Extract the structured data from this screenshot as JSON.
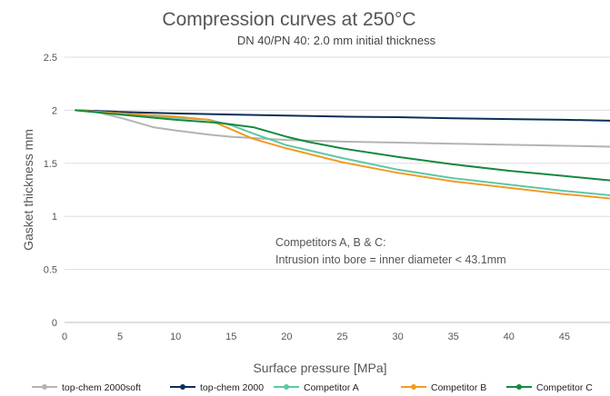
{
  "chart_data": {
    "type": "line",
    "title": "Compression curves at 250°C",
    "subtitle": "DN 40/PN 40: 2.0 mm initial thickness",
    "xlabel": "Surface pressure [MPa]",
    "ylabel": "Gasket thickness mm",
    "xlim": [
      0,
      50
    ],
    "ylim": [
      0,
      2.5
    ],
    "xticks": [
      0,
      5,
      10,
      15,
      20,
      25,
      30,
      35,
      40,
      45,
      50
    ],
    "yticks": [
      0,
      0.5,
      1,
      1.5,
      2,
      2.5
    ],
    "xtick_labels": [
      "0",
      "5",
      "10",
      "15",
      "20",
      "25",
      "30",
      "35",
      "40",
      "45",
      "50"
    ],
    "ytick_labels": [
      "0",
      "0.5",
      "1",
      "1.5",
      "2",
      "2.5"
    ],
    "grid": "horizontal",
    "legend_position": "bottom",
    "annotation_lines": [
      "Competitors A, B & C:",
      "Intrusion into bore = inner diameter < 43.1mm"
    ],
    "series": [
      {
        "name": "top-chem 2000soft",
        "color": "#b3b3b3",
        "x": [
          1,
          3,
          5,
          8,
          10,
          13,
          15,
          20,
          25,
          30,
          35,
          40,
          45,
          50
        ],
        "y": [
          2.0,
          1.98,
          1.93,
          1.84,
          1.81,
          1.77,
          1.75,
          1.72,
          1.705,
          1.695,
          1.685,
          1.675,
          1.665,
          1.655
        ]
      },
      {
        "name": "top-chem 2000",
        "color": "#0d2d5a",
        "x": [
          1,
          5,
          10,
          15,
          20,
          25,
          30,
          35,
          40,
          45,
          50
        ],
        "y": [
          2.0,
          1.985,
          1.97,
          1.96,
          1.95,
          1.94,
          1.935,
          1.925,
          1.917,
          1.91,
          1.9
        ]
      },
      {
        "name": "Competitor A",
        "color": "#5ec7a4",
        "x": [
          1,
          5,
          10,
          13,
          15,
          17,
          20,
          25,
          30,
          35,
          40,
          45,
          50
        ],
        "y": [
          2.0,
          1.97,
          1.93,
          1.91,
          1.86,
          1.78,
          1.67,
          1.55,
          1.44,
          1.36,
          1.3,
          1.24,
          1.19
        ]
      },
      {
        "name": "Competitor B",
        "color": "#f29b24",
        "x": [
          1,
          5,
          10,
          13,
          15,
          17,
          20,
          25,
          30,
          35,
          40,
          45,
          50
        ],
        "y": [
          2.0,
          1.97,
          1.94,
          1.91,
          1.82,
          1.73,
          1.64,
          1.51,
          1.41,
          1.33,
          1.27,
          1.21,
          1.16
        ]
      },
      {
        "name": "Competitor C",
        "color": "#15893f",
        "x": [
          1,
          5,
          10,
          14,
          17,
          20,
          22,
          25,
          30,
          35,
          40,
          45,
          50
        ],
        "y": [
          2.0,
          1.96,
          1.91,
          1.88,
          1.84,
          1.75,
          1.7,
          1.64,
          1.56,
          1.49,
          1.43,
          1.38,
          1.33
        ]
      }
    ]
  }
}
